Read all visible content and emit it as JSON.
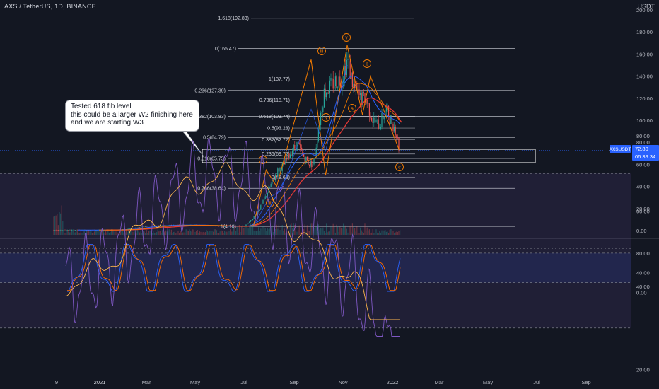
{
  "header": {
    "symbol_line": "AXS / TetherUS, 1D, BINANCE",
    "currency": "USDT"
  },
  "annotation": {
    "lines": [
      "Tested 618 fib level",
      "this could be a larger W2 finishing here",
      "and we are starting W3"
    ]
  },
  "price_marker": {
    "ticker": "AXSUSDT",
    "price": "72.80",
    "countdown": "06:39:34"
  },
  "colors": {
    "background": "#131722",
    "candle_up": "#26a69a",
    "candle_down": "#ef5350",
    "fib_line": "#d1d4dc",
    "wave_line": "#f57c00",
    "ma_blue": "#2962ff",
    "ma_red": "#e53935",
    "stoch_k": "#2962ff",
    "stoch_d": "#ff6d00",
    "rsi": "#7e57c2",
    "rsi_ma": "#ffb74d",
    "marker_bg": "#2962ff"
  },
  "chart_data": [
    {
      "type": "candlestick",
      "title": "AXS / TetherUS, 1D, BINANCE",
      "xlabel": "",
      "ylabel": "",
      "ylim": [
        0,
        200
      ],
      "y_ticks": [
        "0.00",
        "20.00",
        "40.00",
        "60.00",
        "80.00",
        "100.00",
        "120.00",
        "140.00",
        "160.00",
        "180.00",
        "200.00"
      ],
      "x_ticks": [
        "9",
        "2021",
        "Mar",
        "May",
        "Jul",
        "Sep",
        "Nov",
        "2022",
        "Mar",
        "May",
        "Jul",
        "Sep"
      ],
      "x": [
        "2020-11-04",
        "2020-12-01",
        "2021-01-01",
        "2021-02-01",
        "2021-03-01",
        "2021-04-01",
        "2021-05-01",
        "2021-06-01",
        "2021-06-15",
        "2021-07-01",
        "2021-07-10",
        "2021-07-20",
        "2021-07-28",
        "2021-08-05",
        "2021-08-12",
        "2021-08-20",
        "2021-08-28",
        "2021-09-05",
        "2021-09-12",
        "2021-09-18",
        "2021-09-25",
        "2021-10-01",
        "2021-10-08",
        "2021-10-15",
        "2021-10-22",
        "2021-10-30",
        "2021-11-06",
        "2021-11-14",
        "2021-11-22",
        "2021-11-30",
        "2021-12-08",
        "2021-12-16",
        "2021-12-24",
        "2021-12-31",
        "2022-01-06",
        "2022-01-10"
      ],
      "close": [
        0.6,
        0.5,
        0.5,
        1.0,
        4.0,
        5.0,
        5.0,
        4.0,
        3.5,
        4.2,
        10.0,
        20.0,
        32.0,
        45.0,
        55.0,
        60.0,
        72.0,
        78.0,
        68.0,
        62.0,
        60.0,
        92.0,
        125.0,
        130.0,
        135.0,
        138.0,
        155.0,
        130.0,
        120.0,
        118.0,
        100.0,
        95.0,
        110.0,
        100.0,
        90.0,
        72.8
      ],
      "fib_levels": [
        {
          "label": "1.618(192.83)",
          "value": 192.83
        },
        {
          "label": "0(165.47)",
          "value": 165.47
        },
        {
          "label": "0.236(127.39)",
          "value": 127.39
        },
        {
          "label": "0.382(103.83)",
          "value": 103.83
        },
        {
          "label": "0.5(84.79)",
          "value": 84.79
        },
        {
          "label": "0.618(65.75)",
          "value": 65.75
        },
        {
          "label": "0.786(38.64)",
          "value": 38.64
        },
        {
          "label": "1(4.10)",
          "value": 4.1
        }
      ],
      "fib_levels_inner": [
        {
          "label": "1(137.77)",
          "value": 137.77
        },
        {
          "label": "0.786(118.71)",
          "value": 118.71
        },
        {
          "label": "0.618(103.74)",
          "value": 103.74
        },
        {
          "label": "0.5(93.23)",
          "value": 93.23
        },
        {
          "label": "0.382(82.72)",
          "value": 82.72
        },
        {
          "label": "0.236(69.72)",
          "value": 69.72
        },
        {
          "label": "0(48.68)",
          "value": 48.68
        }
      ],
      "wave_labels": [
        "i",
        "ii",
        "iii",
        "iv",
        "v",
        "a",
        "b",
        "c"
      ],
      "last_price": 72.8
    },
    {
      "type": "line",
      "title": "",
      "ylim": [
        0,
        100
      ],
      "y_ticks": [
        "0.00",
        "40.00",
        "80.00"
      ],
      "levels": [
        80,
        20
      ]
    },
    {
      "type": "line",
      "title": "",
      "ylim": [
        20,
        90
      ],
      "y_ticks": [
        "20.00",
        "40.00",
        "60.00",
        "80.00"
      ],
      "levels": [
        70,
        30
      ]
    }
  ]
}
